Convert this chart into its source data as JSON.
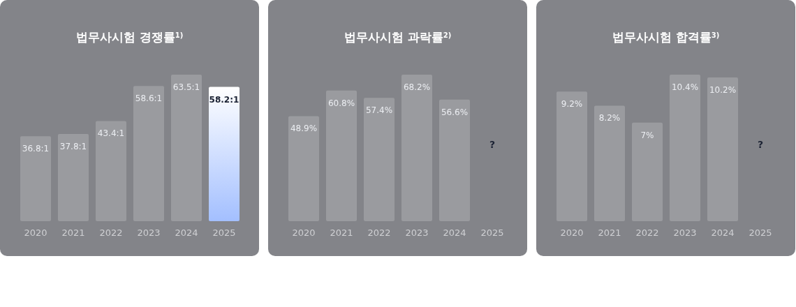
{
  "chart_data": [
    {
      "type": "bar",
      "title": "법무사시험 경쟁률$^{1)}$",
      "categories": [
        "2020",
        "2021",
        "2022",
        "2023",
        "2024",
        "2025"
      ],
      "values": [
        36.8,
        37.8,
        43.4,
        58.6,
        63.5,
        58.2
      ],
      "value_labels": [
        "36.8:1",
        "37.8:1",
        "43.4:1",
        "58.6:1",
        "63.5:1",
        "58.2:1"
      ],
      "colors": [
        "#9a9b9f",
        "#9a9b9f",
        "#9a9b9f",
        "#9a9b9f",
        "#9a9b9f",
        "#a3bfff"
      ]
    },
    {
      "type": "bar",
      "title": "법무사시험 과락률$^{2)}$",
      "categories": [
        "2020",
        "2021",
        "2022",
        "2023",
        "2024",
        "2025"
      ],
      "values": [
        48.9,
        60.8,
        57.4,
        68.2,
        56.6,
        null
      ],
      "value_labels": [
        "48.9%",
        "60.8%",
        "57.4%",
        "68.2%",
        "56.6%",
        "?"
      ],
      "colors": [
        "#9a9b9f",
        "#9a9b9f",
        "#9a9b9f",
        "#9a9b9f",
        "#9a9b9f",
        "#a3bfff"
      ]
    },
    {
      "type": "bar",
      "title": "법무사시험 합격률$^{3)}$",
      "categories": [
        "2020",
        "2021",
        "2022",
        "2023",
        "2024",
        "2025"
      ],
      "values": [
        9.2,
        8.2,
        7,
        10.4,
        10.2,
        null
      ],
      "value_labels": [
        "9.2%",
        "8.2%",
        "7%",
        "10.4%",
        "10.2%",
        "?"
      ],
      "colors": [
        "#9a9b9f",
        "#9a9b9f",
        "#9a9b9f",
        "#9a9b9f",
        "#9a9b9f",
        "#a3bfff"
      ]
    }
  ]
}
